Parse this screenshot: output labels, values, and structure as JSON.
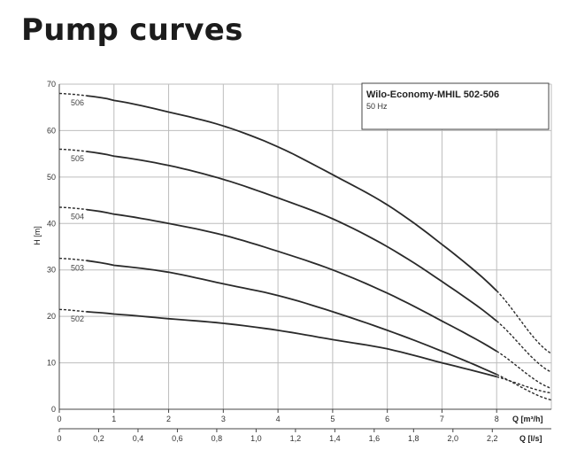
{
  "page": {
    "title": "Pump curves"
  },
  "chart_data": {
    "type": "line",
    "title": "Wilo-Economy-MHIL 502-506",
    "subtitle": "50 Hz",
    "xlabel": "Q [m³/h]",
    "x2label": "Q [l/s]",
    "ylabel": "H [m]",
    "xlim": [
      0,
      9
    ],
    "ylim": [
      0,
      70
    ],
    "x_ticks": [
      0,
      1,
      2,
      3,
      4,
      5,
      6,
      7,
      8
    ],
    "y_ticks": [
      0,
      10,
      20,
      30,
      40,
      50,
      60,
      70
    ],
    "x2_ticks": [
      "0",
      "0,2",
      "0,4",
      "0,6",
      "0,8",
      "1,0",
      "1,2",
      "1,4",
      "1,6",
      "1,8",
      "2,0",
      "2,2"
    ],
    "x2_tick_values_ls": [
      0,
      0.2,
      0.4,
      0.6,
      0.8,
      1.0,
      1.2,
      1.4,
      1.6,
      1.8,
      2.0,
      2.2
    ],
    "grid": true,
    "solid_range": [
      0.5,
      8
    ],
    "series": [
      {
        "name": "506",
        "x": [
          0,
          0.5,
          1,
          2,
          3,
          4,
          5,
          6,
          7,
          8,
          9
        ],
        "y": [
          68,
          67.5,
          66.5,
          64,
          61,
          56.5,
          50.5,
          44,
          35.5,
          25.5,
          12
        ]
      },
      {
        "name": "505",
        "x": [
          0,
          0.5,
          1,
          2,
          3,
          4,
          5,
          6,
          7,
          8,
          9
        ],
        "y": [
          56,
          55.5,
          54.5,
          52.5,
          49.5,
          45.5,
          41,
          35,
          27.5,
          19,
          8
        ]
      },
      {
        "name": "504",
        "x": [
          0,
          0.5,
          1,
          2,
          3,
          4,
          5,
          6,
          7,
          8,
          9
        ],
        "y": [
          43.5,
          43,
          42,
          40,
          37.5,
          34,
          30,
          25,
          19,
          12.5,
          4.5
        ]
      },
      {
        "name": "503",
        "x": [
          0,
          0.5,
          1,
          2,
          3,
          4,
          5,
          6,
          7,
          8,
          9
        ],
        "y": [
          32.5,
          32,
          31,
          29.5,
          27,
          24.5,
          21,
          17,
          12.5,
          7.5,
          2
        ]
      },
      {
        "name": "502",
        "x": [
          0,
          0.5,
          1,
          2,
          3,
          4,
          5,
          6,
          7,
          8,
          9
        ],
        "y": [
          21.5,
          21,
          20.5,
          19.5,
          18.5,
          17,
          15,
          13,
          10,
          7,
          3.5
        ]
      }
    ]
  }
}
